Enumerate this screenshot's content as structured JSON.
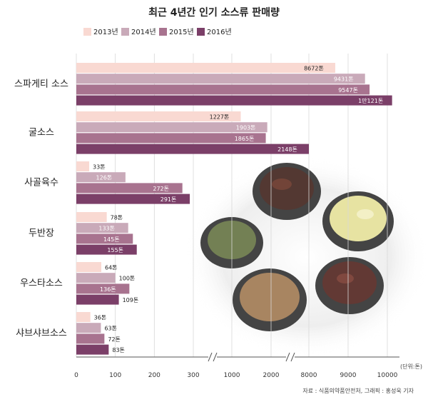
{
  "chart_data": {
    "type": "bar",
    "orientation": "horizontal",
    "title": "최근 4년간 인기 소스류 판매량",
    "unit_label": "(단위:톤)",
    "source": "자료 : 식품의약품안전처, 그래픽 : 홍성욱 기자",
    "categories": [
      "스파게티 소스",
      "굴소스",
      "사골육수",
      "두반장",
      "우스타소스",
      "샤브샤브소스"
    ],
    "series": [
      {
        "name": "2013년",
        "color": "#f9d9d2",
        "values": [
          8672,
          1227,
          33,
          78,
          64,
          36
        ],
        "labels": [
          "8672톤",
          "1227톤",
          "33톤",
          "78톤",
          "64톤",
          "36톤"
        ]
      },
      {
        "name": "2014년",
        "color": "#c9aab9",
        "values": [
          9431,
          1903,
          126,
          133,
          100,
          63
        ],
        "labels": [
          "9431톤",
          "1903톤",
          "126톤",
          "133톤",
          "100톤",
          "63톤"
        ]
      },
      {
        "name": "2015년",
        "color": "#a8738f",
        "values": [
          9547,
          1865,
          272,
          145,
          136,
          72
        ],
        "labels": [
          "9547톤",
          "1865톤",
          "272톤",
          "145톤",
          "136톤",
          "72톤"
        ]
      },
      {
        "name": "2016년",
        "color": "#7b3f68",
        "values": [
          10121,
          2148,
          291,
          155,
          109,
          83
        ],
        "labels": [
          "1만121톤",
          "2148톤",
          "291톤",
          "155톤",
          "109톤",
          "83톤"
        ]
      }
    ],
    "x_ticks": [
      "0",
      "100",
      "200",
      "300",
      "1000",
      "2000",
      "8000",
      "9000",
      "10000"
    ],
    "axis_breaks": [
      [
        300,
        1000
      ],
      [
        2000,
        8000
      ]
    ],
    "xlim": [
      0,
      10400
    ],
    "grid": true,
    "legend": "top"
  }
}
